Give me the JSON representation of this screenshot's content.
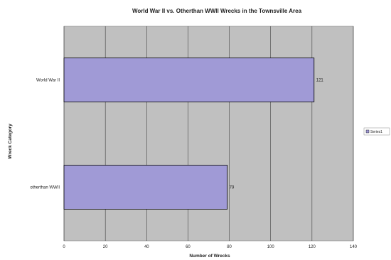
{
  "chart_data": {
    "type": "bar",
    "orientation": "horizontal",
    "title": "World War II vs. Otherthan WWII Wrecks in the Townsville Area",
    "xlabel": "Number of Wrecks",
    "ylabel": "Wreck Category",
    "categories": [
      "World War II",
      "otherthan WWII"
    ],
    "series": [
      {
        "name": "Series1",
        "values": [
          121,
          79
        ]
      }
    ],
    "xlim": [
      0,
      140
    ],
    "xticks": [
      0,
      20,
      40,
      60,
      80,
      100,
      120,
      140
    ],
    "grid": true,
    "legend_position": "right",
    "colors": {
      "bar": "#a09ad6",
      "bar_border": "#000000",
      "plot_bg": "#c0c0c0",
      "grid": "#000000"
    }
  }
}
